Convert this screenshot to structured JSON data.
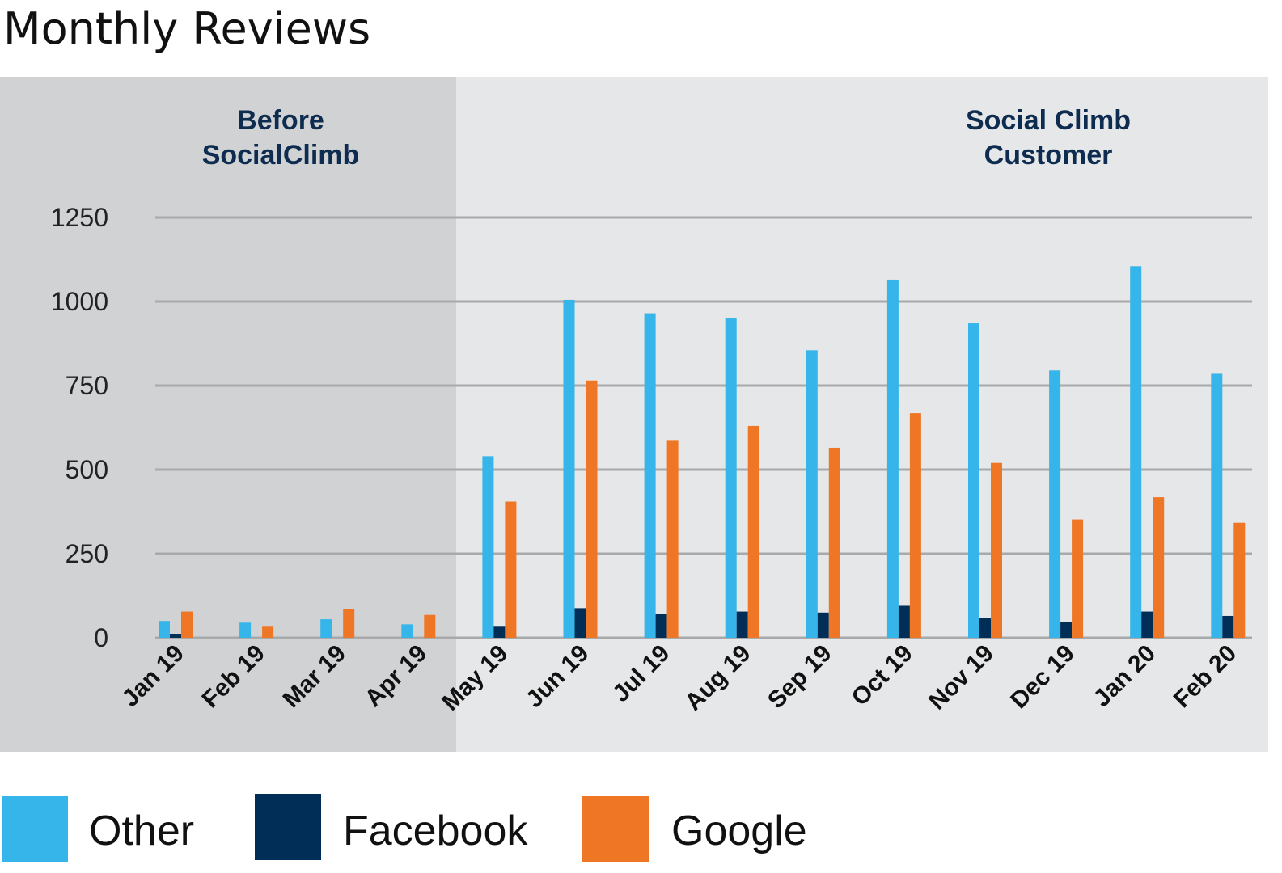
{
  "chart_data": {
    "type": "bar",
    "title": "Monthly Reviews",
    "xlabel": "",
    "ylabel": "",
    "ylim": [
      0,
      1250
    ],
    "yticks": [
      0,
      250,
      500,
      750,
      1000,
      1250
    ],
    "categories": [
      "Jan 19",
      "Feb 19",
      "Mar 19",
      "Apr 19",
      "May 19",
      "Jun 19",
      "Jul 19",
      "Aug 19",
      "Sep 19",
      "Oct 19",
      "Nov 19",
      "Dec 19",
      "Jan 20",
      "Feb 20"
    ],
    "series": [
      {
        "name": "Other",
        "color": "#35b5e9",
        "values": [
          50,
          45,
          55,
          40,
          540,
          1005,
          965,
          950,
          855,
          1065,
          935,
          795,
          1105,
          785
        ]
      },
      {
        "name": "Facebook",
        "color": "#002e56",
        "values": [
          12,
          0,
          0,
          0,
          33,
          88,
          72,
          78,
          75,
          95,
          60,
          47,
          78,
          65
        ]
      },
      {
        "name": "Google",
        "color": "#ef7624",
        "values": [
          78,
          33,
          85,
          68,
          405,
          765,
          588,
          630,
          565,
          668,
          520,
          352,
          418,
          342
        ]
      }
    ],
    "regions": [
      {
        "label_lines": [
          "Before",
          "SocialClimb"
        ],
        "from_category": "Jan 19",
        "to_category": "Apr 19",
        "color": "#d1d2d4"
      },
      {
        "label_lines": [
          "Social Climb",
          "Customer"
        ],
        "from_category": "May 19",
        "to_category": "Feb 20",
        "color": "#e6e7e8"
      }
    ],
    "legend": [
      "Other",
      "Facebook",
      "Google"
    ],
    "legend_position": "bottom",
    "grid": true,
    "grid_color": "#a8a9ab"
  }
}
